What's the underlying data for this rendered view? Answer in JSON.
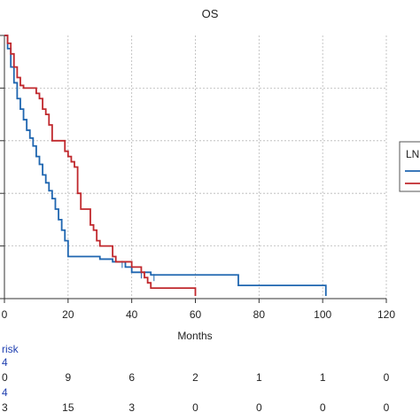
{
  "chart_data": {
    "type": "line",
    "title": "OS",
    "xlabel": "Months",
    "ylabel": "",
    "xlim": [
      0,
      120
    ],
    "ylim": [
      0,
      1
    ],
    "xticks": [
      0,
      20,
      40,
      60,
      80,
      100,
      120
    ],
    "grid": true,
    "legend": {
      "placement": "right",
      "title": "LN"
    },
    "series": [
      {
        "color": "#1f66b0",
        "points": [
          [
            0,
            1.0
          ],
          [
            1,
            0.95
          ],
          [
            2,
            0.88
          ],
          [
            3,
            0.82
          ],
          [
            4,
            0.76
          ],
          [
            5,
            0.72
          ],
          [
            6,
            0.68
          ],
          [
            7,
            0.64
          ],
          [
            8,
            0.61
          ],
          [
            9,
            0.58
          ],
          [
            10,
            0.54
          ],
          [
            11,
            0.51
          ],
          [
            12,
            0.47
          ],
          [
            13,
            0.44
          ],
          [
            14,
            0.41
          ],
          [
            15,
            0.38
          ],
          [
            16,
            0.34
          ],
          [
            17,
            0.3
          ],
          [
            18,
            0.26
          ],
          [
            19,
            0.22
          ],
          [
            20,
            0.16
          ],
          [
            24,
            0.16
          ],
          [
            30,
            0.15
          ],
          [
            34,
            0.14
          ],
          [
            38,
            0.12
          ],
          [
            40,
            0.1
          ],
          [
            45,
            0.1
          ],
          [
            46,
            0.09
          ],
          [
            73,
            0.09
          ],
          [
            73.5,
            0.05
          ],
          [
            101,
            0.05
          ],
          [
            101,
            0.01
          ]
        ],
        "censors": [
          [
            37,
            0.13
          ],
          [
            43,
            0.09
          ],
          [
            47,
            0.08
          ]
        ]
      },
      {
        "color": "#c0282d",
        "points": [
          [
            0,
            1.0
          ],
          [
            1,
            0.97
          ],
          [
            2,
            0.93
          ],
          [
            3,
            0.88
          ],
          [
            4,
            0.84
          ],
          [
            5,
            0.81
          ],
          [
            6,
            0.8
          ],
          [
            9,
            0.8
          ],
          [
            10,
            0.78
          ],
          [
            11,
            0.76
          ],
          [
            12,
            0.72
          ],
          [
            13,
            0.7
          ],
          [
            14,
            0.66
          ],
          [
            15,
            0.6
          ],
          [
            18,
            0.6
          ],
          [
            19,
            0.56
          ],
          [
            20,
            0.54
          ],
          [
            21,
            0.52
          ],
          [
            22,
            0.5
          ],
          [
            23,
            0.4
          ],
          [
            24,
            0.34
          ],
          [
            26,
            0.34
          ],
          [
            27,
            0.28
          ],
          [
            28,
            0.26
          ],
          [
            29,
            0.22
          ],
          [
            30,
            0.2
          ],
          [
            33,
            0.2
          ],
          [
            34,
            0.16
          ],
          [
            35,
            0.14
          ],
          [
            40,
            0.12
          ],
          [
            43,
            0.1
          ],
          [
            44,
            0.08
          ],
          [
            45,
            0.06
          ],
          [
            46,
            0.04
          ],
          [
            60,
            0.04
          ],
          [
            60,
            0.01
          ]
        ],
        "censors": [
          [
            44,
            0.09
          ]
        ]
      }
    ],
    "risk_table": {
      "title": "risk",
      "rows": [
        {
          "label": "4",
          "color": "#1f3fb0",
          "values": []
        },
        {
          "label": "0",
          "color": "#222222",
          "values": [
            "9",
            "6",
            "2",
            "1",
            "1",
            "0"
          ]
        },
        {
          "label": "4",
          "color": "#1f3fb0",
          "values": []
        },
        {
          "label": "3",
          "color": "#222222",
          "values": [
            "15",
            "3",
            "0",
            "0",
            "0",
            "0"
          ]
        }
      ]
    }
  }
}
